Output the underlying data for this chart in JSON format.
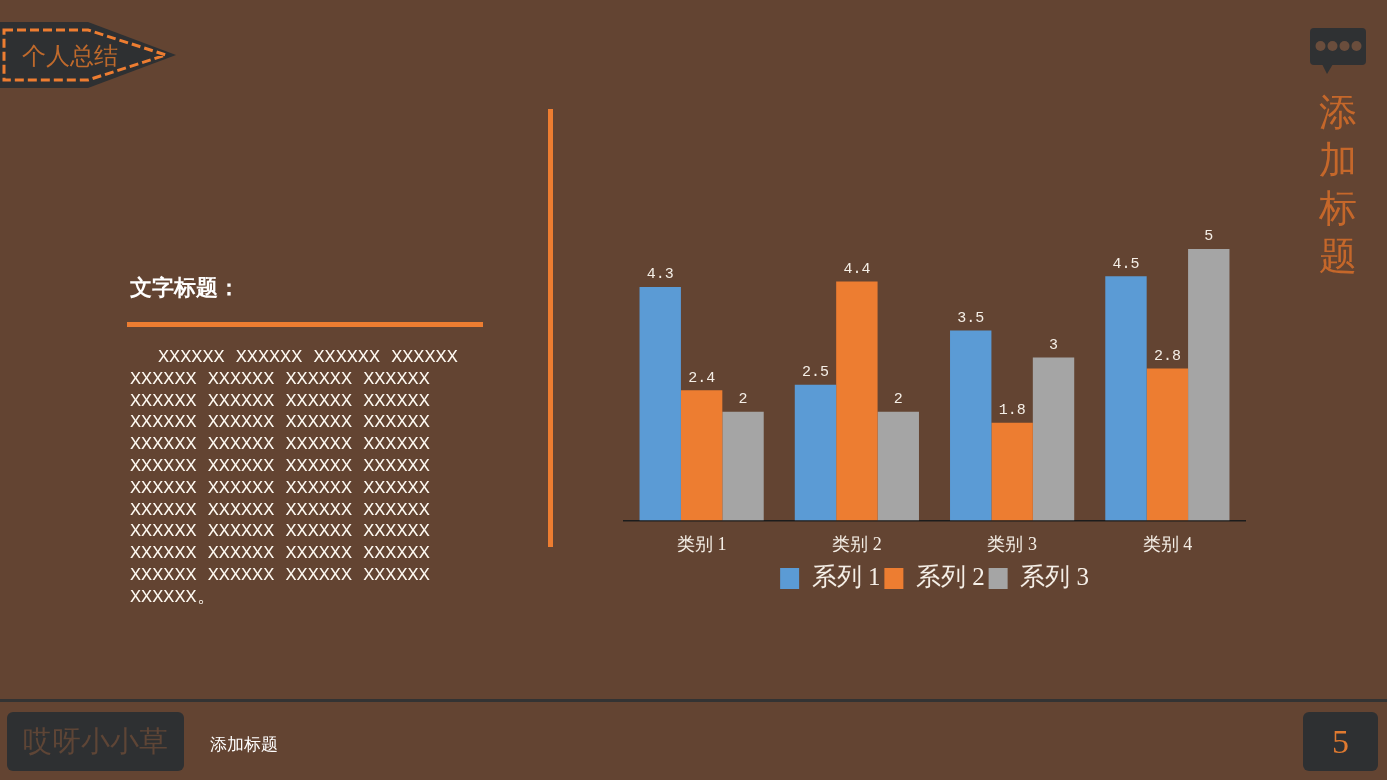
{
  "chart_data": {
    "type": "bar",
    "categories": [
      "类别 1",
      "类别 2",
      "类别 3",
      "类别 4"
    ],
    "series": [
      {
        "name": "系列 1",
        "color": "#5b9bd5",
        "values": [
          4.3,
          2.5,
          3.5,
          4.5
        ]
      },
      {
        "name": "系列 2",
        "color": "#ed7d31",
        "values": [
          2.4,
          4.4,
          1.8,
          2.8
        ]
      },
      {
        "name": "系列 3",
        "color": "#a5a5a5",
        "values": [
          2,
          2,
          3,
          5
        ]
      }
    ],
    "data_labels": true,
    "legend": "bottom",
    "tick_labels": "x",
    "annotations": [
      "个人总结",
      "添加标题",
      "文字标题：",
      "XXXXXX XXXXXX XXXXXX XXXXXX XXXXXX XXXXXX XXXXXX XXXXXX XXXXXX XXXXXX XXXXXX XXXXXX XXXXXX XXXXXX XXXXXX XXXXXX XXXXXX XXXXXX XXXXXX XXXXXX XXXXXX XXXXXX XXXXXX XXXXXX XXXXXX XXXXXX XXXXXX XXXXXX XXXXXX XXXXXX XXXXXX XXXXXX XXXXXX XXXXXX XXXXXX XXXXXX XXXXXX XXXXXX XXXXXX XXXXXX XXXXXX XXXXXX XXXXXX XXXXXX XXXXXX。",
      "哎呀小小草",
      "添加标题",
      "5"
    ]
  }
}
